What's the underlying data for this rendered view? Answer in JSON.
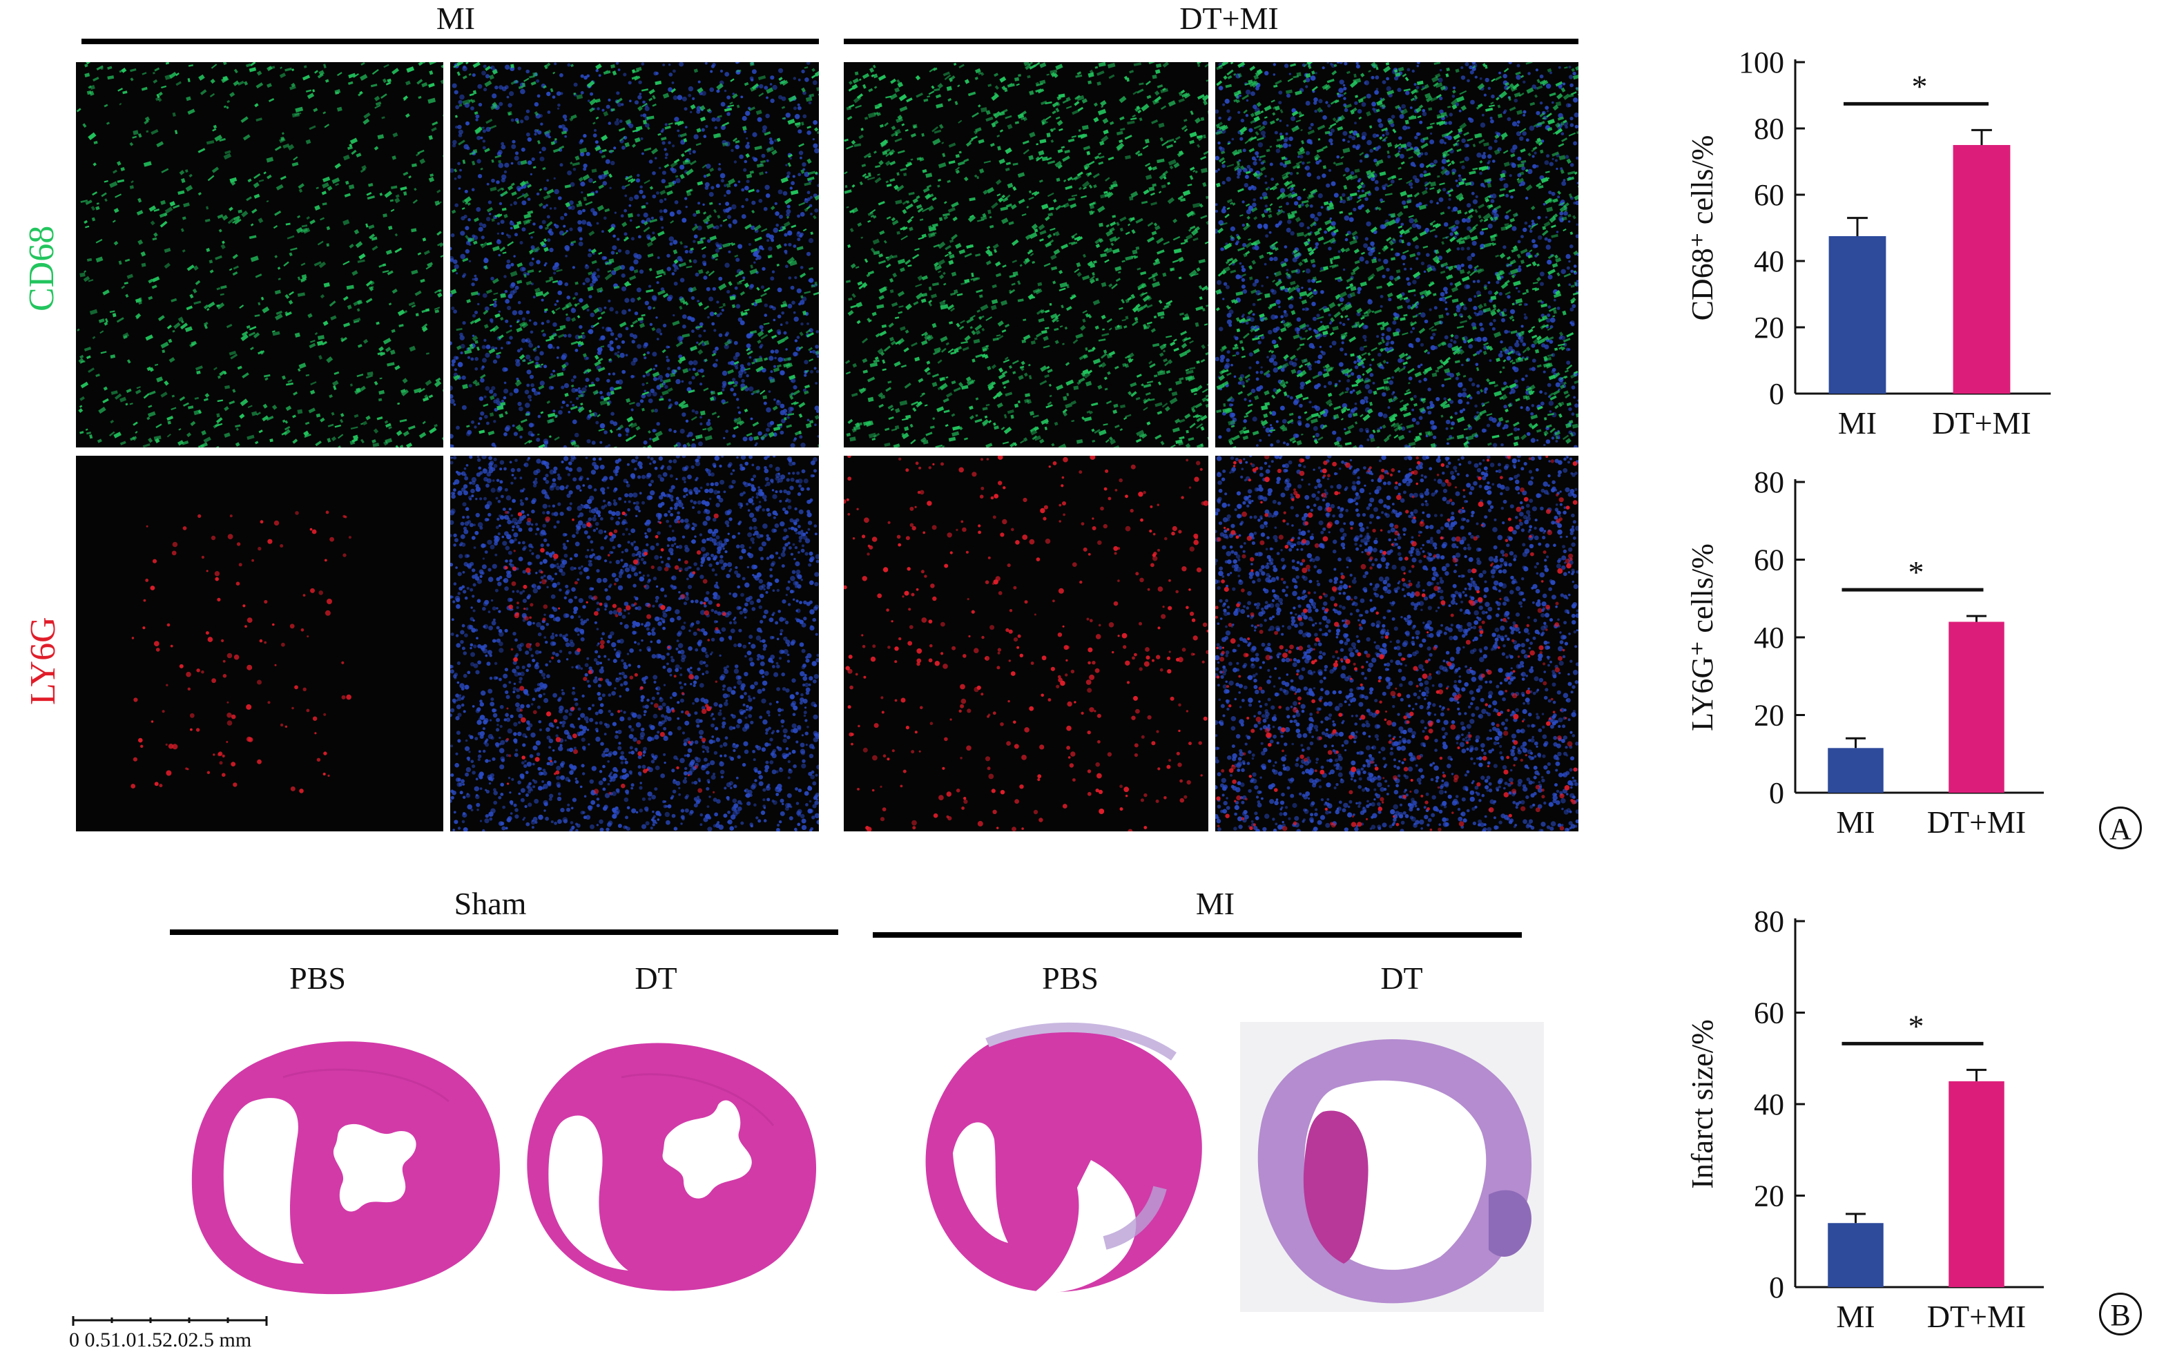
{
  "panel_a": {
    "groups": [
      "MI",
      "DT+MI"
    ],
    "rows": [
      {
        "label": "CD68",
        "color": "#22c55e"
      },
      {
        "label": "LY6G",
        "color": "#e11d2a"
      }
    ]
  },
  "panel_b": {
    "groups": [
      "Sham",
      "MI"
    ],
    "subgroups": [
      "PBS",
      "DT",
      "PBS",
      "DT"
    ],
    "scale_bar": "0  0.51.01.52.02.5 mm"
  },
  "panel_letters": {
    "a": "A",
    "b": "B"
  },
  "colors": {
    "mi_bar": "#2d4a9b",
    "dtmi_bar": "#dc1e7a",
    "cd68": "#22c55e",
    "ly6g": "#e11d2a",
    "nucleus": "#2b4cc8",
    "he": "#d23aa8"
  },
  "chart_data": [
    {
      "type": "bar",
      "categories": [
        "MI",
        "DT+MI"
      ],
      "values": [
        47.5,
        75
      ],
      "errors": [
        5.5,
        4.5
      ],
      "ylabel": "CD68⁺ cells/%",
      "ylim": [
        0,
        100
      ],
      "yticks": [
        0,
        20,
        40,
        60,
        80,
        100
      ],
      "significance": "*"
    },
    {
      "type": "bar",
      "categories": [
        "MI",
        "DT+MI"
      ],
      "values": [
        11.5,
        44
      ],
      "errors": [
        2.5,
        1.5
      ],
      "ylabel": "LY6G⁺ cells/%",
      "ylim": [
        0,
        80
      ],
      "yticks": [
        0,
        20,
        40,
        60,
        80
      ],
      "significance": "*"
    },
    {
      "type": "bar",
      "categories": [
        "MI",
        "DT+MI"
      ],
      "values": [
        14,
        45
      ],
      "errors": [
        2,
        2.5
      ],
      "ylabel": "Infarct size/%",
      "ylim": [
        0,
        80
      ],
      "yticks": [
        0,
        20,
        40,
        60,
        80
      ],
      "significance": "*"
    }
  ]
}
